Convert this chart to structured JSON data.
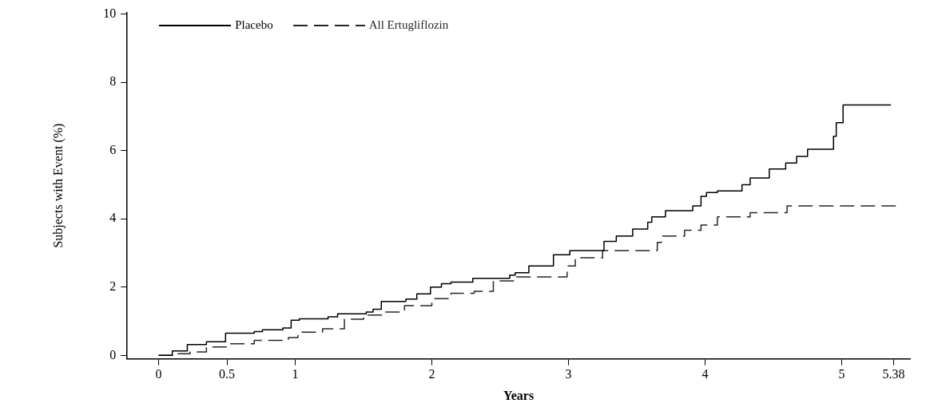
{
  "chart_data": {
    "type": "step",
    "xlabel": "Years",
    "ylabel": "Subjects with Event (%)",
    "xlim": [
      -0.23,
      5.5
    ],
    "ylim": [
      -0.1,
      10.05
    ],
    "xticks": [
      0,
      0.5,
      1,
      2,
      3,
      4,
      5,
      5.38
    ],
    "yticks": [
      0,
      2,
      4,
      6,
      8,
      10
    ],
    "grid": false,
    "legend": "top left",
    "marker": "none",
    "series": [
      {
        "name": "Placebo",
        "color": "#000000",
        "line_style": "solid",
        "x": [
          0,
          0.1,
          0.21,
          0.35,
          0.49,
          0.7,
          0.76,
          0.91,
          0.97,
          1.03,
          1.24,
          1.31,
          1.52,
          1.57,
          1.63,
          1.81,
          1.89,
          1.99,
          2.07,
          2.14,
          2.3,
          2.57,
          2.61,
          2.71,
          2.89,
          3.01,
          3.26,
          3.35,
          3.47,
          3.58,
          3.61,
          3.71,
          3.91,
          3.97,
          4.01,
          4.09,
          4.27,
          4.33,
          4.47,
          4.59,
          4.67,
          4.75,
          4.94,
          4.96,
          5.01,
          5.36
        ],
        "values": [
          0,
          0.13,
          0.32,
          0.4,
          0.65,
          0.7,
          0.75,
          0.8,
          1.03,
          1.07,
          1.13,
          1.22,
          1.27,
          1.35,
          1.58,
          1.65,
          1.8,
          2.0,
          2.1,
          2.15,
          2.26,
          2.35,
          2.42,
          2.62,
          2.95,
          3.07,
          3.34,
          3.5,
          3.7,
          3.9,
          4.06,
          4.24,
          4.38,
          4.66,
          4.77,
          4.82,
          5.0,
          5.2,
          5.46,
          5.64,
          5.83,
          6.04,
          6.42,
          6.82,
          7.34,
          7.34
        ]
      },
      {
        "name": "All Ertugliflozin",
        "color": "#262626",
        "line_style": "dashed",
        "x": [
          0,
          0.11,
          0.23,
          0.35,
          0.5,
          0.7,
          0.95,
          1.02,
          1.2,
          1.36,
          1.5,
          1.65,
          1.8,
          2.0,
          2.14,
          2.31,
          2.45,
          2.62,
          2.99,
          3.05,
          3.25,
          3.65,
          3.68,
          3.85,
          3.97,
          4.09,
          4.33,
          4.6,
          5.4
        ],
        "values": [
          0,
          0.05,
          0.1,
          0.25,
          0.34,
          0.44,
          0.52,
          0.68,
          0.78,
          1.06,
          1.18,
          1.27,
          1.46,
          1.66,
          1.82,
          1.88,
          2.18,
          2.3,
          2.62,
          2.86,
          3.07,
          3.31,
          3.5,
          3.67,
          3.82,
          4.06,
          4.18,
          4.38,
          4.38
        ]
      }
    ]
  }
}
